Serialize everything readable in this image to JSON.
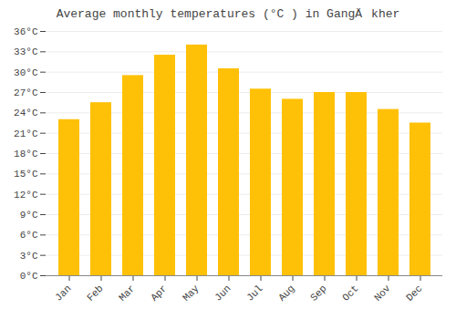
{
  "chart_data": {
    "type": "bar",
    "title": "Average monthly temperatures (°C ) in GangÄkher",
    "categories": [
      "Jan",
      "Feb",
      "Mar",
      "Apr",
      "May",
      "Jun",
      "Jul",
      "Aug",
      "Sep",
      "Oct",
      "Nov",
      "Dec"
    ],
    "values": [
      23.0,
      25.5,
      29.5,
      32.5,
      34.0,
      30.5,
      27.5,
      26.0,
      27.0,
      27.0,
      24.5,
      22.5
    ],
    "color": "#FFC107",
    "ylim": [
      0,
      36
    ],
    "yticks": [
      {
        "value": 0,
        "label": "0°C"
      },
      {
        "value": 3,
        "label": "3°C"
      },
      {
        "value": 6,
        "label": "6°C"
      },
      {
        "value": 9,
        "label": "9°C"
      },
      {
        "value": 12,
        "label": "12°C"
      },
      {
        "value": 15,
        "label": "15°C"
      },
      {
        "value": 18,
        "label": "18°C"
      },
      {
        "value": 21,
        "label": "21°C"
      },
      {
        "value": 24,
        "label": "24°C"
      },
      {
        "value": 27,
        "label": "27°C"
      },
      {
        "value": 30,
        "label": "30°C"
      },
      {
        "value": 33,
        "label": "33°C"
      },
      {
        "value": 36,
        "label": "36°C"
      }
    ],
    "grid": true
  }
}
